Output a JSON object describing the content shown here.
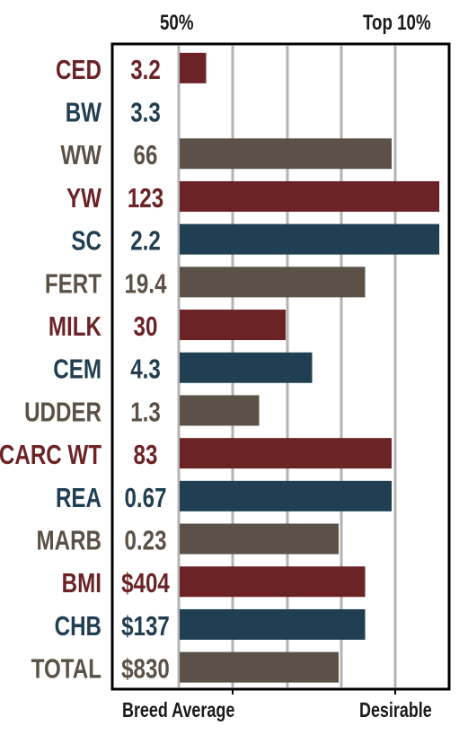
{
  "header": {
    "left_label": "50%",
    "right_label": "Top 10%"
  },
  "footer": {
    "left_label": "Breed Average",
    "right_label": "Desirable"
  },
  "colors": {
    "red": "#6b2326",
    "blue": "#213f52",
    "gray": "#5b5147",
    "grid": "#b3b3b3",
    "frame": "#000000"
  },
  "chart_data": {
    "type": "bar",
    "orientation": "horizontal",
    "xlim": [
      0,
      10
    ],
    "grid": true,
    "categories": [
      "CED",
      "BW",
      "WW",
      "YW",
      "SC",
      "FERT",
      "MILK",
      "CEM",
      "UDDER",
      "CARC WT",
      "REA",
      "MARB",
      "BMI",
      "CHB",
      "TOTAL"
    ],
    "value_labels": [
      "3.2",
      "3.3",
      "66",
      "123",
      "2.2",
      "19.4",
      "30",
      "4.3",
      "1.3",
      "83",
      "0.67",
      "0.23",
      "$404",
      "$137",
      "$830"
    ],
    "values": [
      1.0,
      0,
      8.0,
      9.8,
      9.8,
      7.0,
      4.0,
      5.0,
      3.0,
      8.0,
      8.0,
      6.0,
      7.0,
      7.0,
      6.0
    ],
    "bar_colors": [
      "red",
      "blue",
      "gray",
      "red",
      "blue",
      "gray",
      "red",
      "blue",
      "gray",
      "red",
      "blue",
      "gray",
      "red",
      "blue",
      "gray"
    ]
  }
}
